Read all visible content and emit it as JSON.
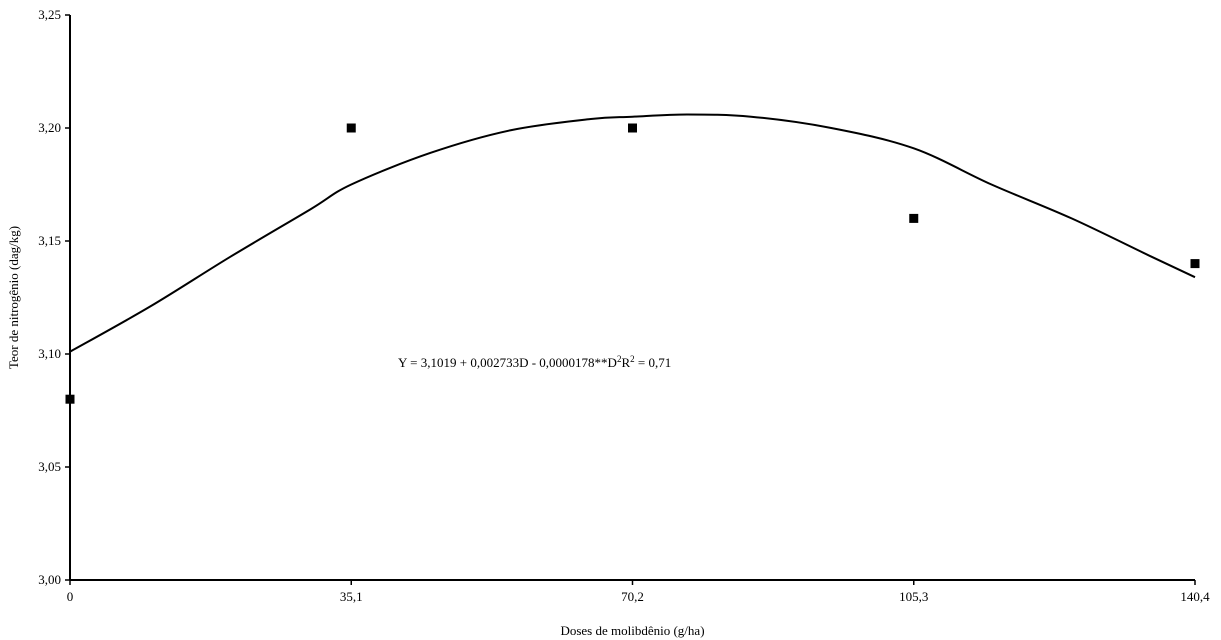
{
  "chart_data": {
    "type": "scatter",
    "xlabel": "Doses de molibdênio (g/ha)",
    "ylabel": "Teor de nitrogênio (dag/kg)",
    "x_ticks": [
      0,
      35.1,
      70.2,
      105.3,
      140.4
    ],
    "x_tick_labels": [
      "0",
      "35,1",
      "70,2",
      "105,3",
      "140,4"
    ],
    "y_ticks": [
      3.0,
      3.05,
      3.1,
      3.15,
      3.2,
      3.25
    ],
    "y_tick_labels": [
      "3,00",
      "3,05",
      "3,10",
      "3,15",
      "3,20",
      "3,25"
    ],
    "xlim": [
      0,
      140.4
    ],
    "ylim": [
      3.0,
      3.25
    ],
    "grid": false,
    "series": [
      {
        "type": "scatter",
        "marker": "square",
        "color": "#000000",
        "x": [
          0,
          35.1,
          70.2,
          105.3,
          140.4
        ],
        "y": [
          3.08,
          3.2,
          3.2,
          3.16,
          3.14
        ]
      },
      {
        "type": "line",
        "color": "#000000",
        "x": [
          0,
          10,
          20,
          30,
          35.1,
          45,
          55,
          65,
          70.2,
          77,
          85,
          95,
          105.3,
          115,
          125,
          135,
          140.4
        ],
        "y": [
          3.101,
          3.121,
          3.143,
          3.164,
          3.175,
          3.189,
          3.199,
          3.204,
          3.205,
          3.206,
          3.205,
          3.2,
          3.191,
          3.175,
          3.16,
          3.143,
          3.134
        ]
      }
    ],
    "annotation": {
      "prefix": "Y = 3,1019 + 0,002733D - 0,0000178**D",
      "sup1": "2",
      "middle": "R",
      "sup2": "2",
      "suffix": " = 0,71"
    }
  }
}
